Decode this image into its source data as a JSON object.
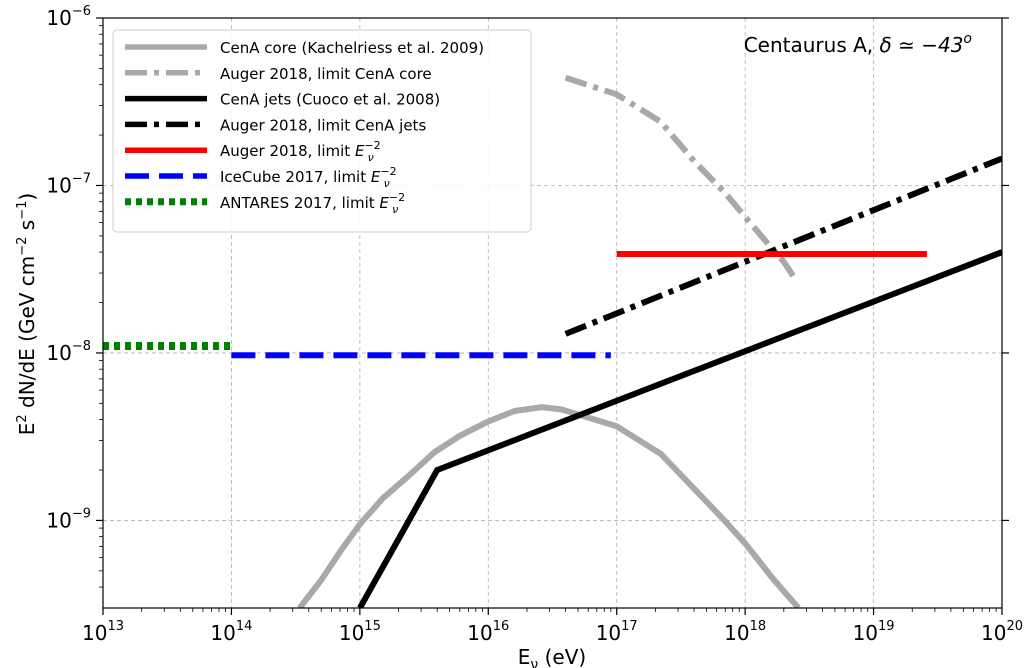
{
  "chart_data": {
    "type": "line",
    "xscale": "log",
    "yscale": "log",
    "xlim": [
      10000000000000.0,
      1e+20
    ],
    "ylim": [
      3e-10,
      1e-06
    ],
    "grid": true,
    "legend_position": "top-left",
    "xlabel": {
      "base": "E",
      "sub": "ν",
      "rest": " (eV)"
    },
    "ylabel": {
      "a": "E",
      "a_sup": "2",
      "b": " dN/dE (GeV cm",
      "b_sup": "−2",
      "c": " s",
      "c_sup": "−1",
      "d": ")"
    },
    "annotation": {
      "text": "Centaurus A, ",
      "math": "δ ≃ −43",
      "sup": "o"
    },
    "x_ticks": [
      {
        "value": 10000000000000.0,
        "base": "10",
        "exp": "13"
      },
      {
        "value": 100000000000000.0,
        "base": "10",
        "exp": "14"
      },
      {
        "value": 1000000000000000.0,
        "base": "10",
        "exp": "15"
      },
      {
        "value": 1e+16,
        "base": "10",
        "exp": "16"
      },
      {
        "value": 1e+17,
        "base": "10",
        "exp": "17"
      },
      {
        "value": 1e+18,
        "base": "10",
        "exp": "18"
      },
      {
        "value": 1e+19,
        "base": "10",
        "exp": "19"
      },
      {
        "value": 1e+20,
        "base": "10",
        "exp": "20"
      }
    ],
    "y_ticks": [
      {
        "value": 1e-09,
        "base": "10",
        "exp": "−9"
      },
      {
        "value": 1e-08,
        "base": "10",
        "exp": "−8"
      },
      {
        "value": 1e-07,
        "base": "10",
        "exp": "−7"
      },
      {
        "value": 1e-06,
        "base": "10",
        "exp": "−6"
      }
    ],
    "series": [
      {
        "label": {
          "text": "CenA core (Kachelriess et al. 2009)"
        },
        "color": "#a9a9a9",
        "style": "solid",
        "x": [
          340000000000000.0,
          500000000000000.0,
          700000000000000.0,
          1000000000000000.0,
          1500000000000000.0,
          2500000000000000.0,
          3800000000000000.0,
          6000000000000000.0,
          1e+16,
          1.6e+16,
          2.6e+16,
          3.7e+16,
          5.5e+16,
          1e+17,
          2.2e+17,
          4e+17,
          6.5e+17,
          1e+18,
          1.6e+18,
          2.6e+18
        ],
        "y": [
          3e-10,
          4.4e-10,
          6.5e-10,
          9.5e-10,
          1.35e-09,
          1.9e-09,
          2.55e-09,
          3.2e-09,
          3.9e-09,
          4.5e-09,
          4.75e-09,
          4.6e-09,
          4.2e-09,
          3.65e-09,
          2.5e-09,
          1.55e-09,
          1.05e-09,
          7.3e-10,
          4.6e-10,
          3e-10
        ]
      },
      {
        "label": {
          "text": "Auger 2018, limit CenA core"
        },
        "color": "#a9a9a9",
        "style": "dashdot",
        "x": [
          4e+16,
          1e+17,
          2.2e+17,
          4e+17,
          7e+17,
          1e+18,
          1.5e+18,
          2e+18,
          2.5e+18
        ],
        "y": [
          4.4e-07,
          3.5e-07,
          2.4e-07,
          1.4e-07,
          9e-08,
          6.5e-08,
          4.5e-08,
          3.5e-08,
          2.7e-08
        ]
      },
      {
        "label": {
          "text": "CenA jets (Cuoco et al. 2008)"
        },
        "color": "#000000",
        "style": "solid",
        "x": [
          1000000000000000.0,
          4000000000000000.0,
          1e+20
        ],
        "y": [
          3e-10,
          2e-09,
          4e-08
        ]
      },
      {
        "label": {
          "text": "Auger 2018, limit CenA jets"
        },
        "color": "#000000",
        "style": "dashdot",
        "x": [
          4e+16,
          1e+20
        ],
        "y": [
          1.3e-08,
          1.45e-07
        ]
      },
      {
        "label": {
          "text": "Auger 2018, limit ",
          "math": "E",
          "sub": "ν",
          "sup": "−2"
        },
        "color": "#ff0000",
        "style": "solid",
        "x": [
          1e+17,
          2.6e+19
        ],
        "y": [
          3.9e-08,
          3.9e-08
        ]
      },
      {
        "label": {
          "text": "IceCube 2017, limit ",
          "math": "E",
          "sub": "ν",
          "sup": "−2"
        },
        "color": "#0000ff",
        "style": "dashed",
        "x": [
          100000000000000.0,
          9e+16
        ],
        "y": [
          9.7e-09,
          9.7e-09
        ]
      },
      {
        "label": {
          "text": "ANTARES 2017, limit ",
          "math": "E",
          "sub": "ν",
          "sup": "−2"
        },
        "color": "#008000",
        "style": "dotted",
        "x": [
          10000000000000.0,
          100000000000000.0
        ],
        "y": [
          1.1e-08,
          1.1e-08
        ]
      }
    ]
  }
}
